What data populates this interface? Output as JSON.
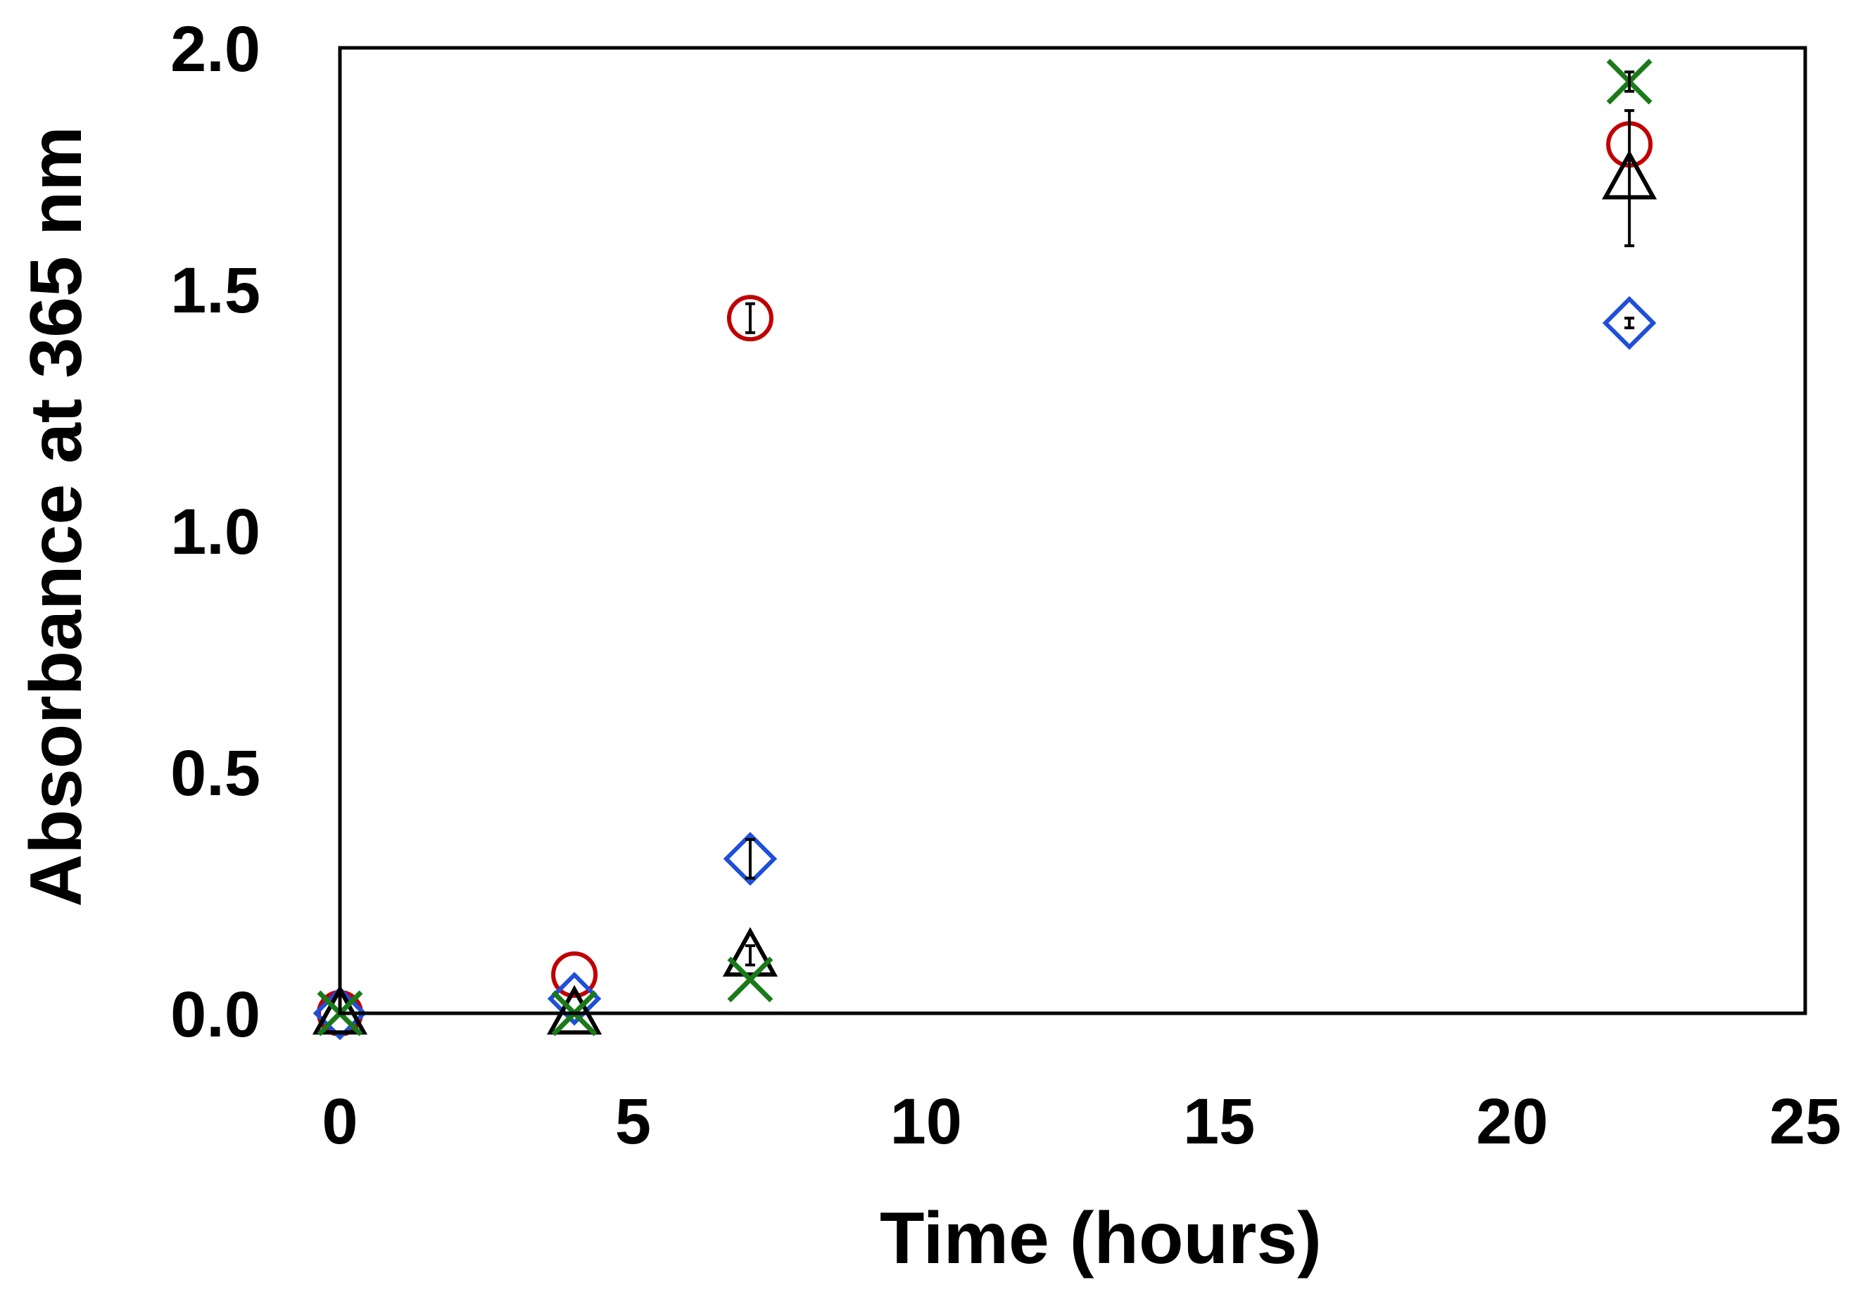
{
  "chart_data": {
    "type": "scatter",
    "title": "",
    "xlabel": "Time (hours)",
    "ylabel": "Absorbance at 365 nm",
    "xlim": [
      0,
      25
    ],
    "ylim": [
      0,
      2.0
    ],
    "x_ticks": [
      0,
      5,
      10,
      15,
      20,
      25
    ],
    "y_ticks": [
      0.0,
      0.5,
      1.0,
      1.5,
      2.0
    ],
    "x_tick_labels": [
      "0",
      "5",
      "10",
      "15",
      "20",
      "25"
    ],
    "y_tick_labels": [
      "0.0",
      "0.5",
      "1.0",
      "1.5",
      "2.0"
    ],
    "grid": false,
    "legend": "none",
    "series": [
      {
        "marker": "circle",
        "color": "#c00000",
        "points": [
          {
            "x": 0,
            "y": 0.0,
            "err": 0.0
          },
          {
            "x": 4,
            "y": 0.08,
            "err": 0.0
          },
          {
            "x": 7,
            "y": 1.44,
            "err": 0.03
          },
          {
            "x": 22,
            "y": 1.8,
            "err": 0.0
          }
        ]
      },
      {
        "marker": "diamond",
        "color": "#1f4fd8",
        "points": [
          {
            "x": 0,
            "y": 0.0,
            "err": 0.0
          },
          {
            "x": 4,
            "y": 0.03,
            "err": 0.0
          },
          {
            "x": 7,
            "y": 0.32,
            "err": 0.04
          },
          {
            "x": 22,
            "y": 1.43,
            "err": 0.01
          }
        ]
      },
      {
        "marker": "triangle",
        "color": "#000000",
        "points": [
          {
            "x": 0,
            "y": 0.0,
            "err": 0.0
          },
          {
            "x": 4,
            "y": 0.0,
            "err": 0.0
          },
          {
            "x": 7,
            "y": 0.12,
            "err": 0.02
          },
          {
            "x": 22,
            "y": 1.73,
            "err": 0.14
          }
        ]
      },
      {
        "marker": "x",
        "color": "#1a7a1a",
        "points": [
          {
            "x": 0,
            "y": 0.0,
            "err": 0.0
          },
          {
            "x": 4,
            "y": 0.0,
            "err": 0.0
          },
          {
            "x": 7,
            "y": 0.07,
            "err": 0.0
          },
          {
            "x": 22,
            "y": 1.93,
            "err": 0.02
          }
        ]
      }
    ]
  }
}
